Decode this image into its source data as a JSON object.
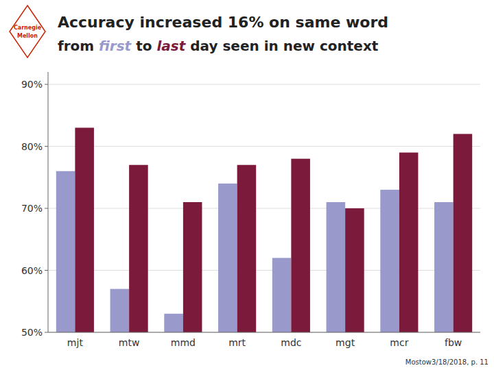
{
  "chart_data": {
    "type": "bar",
    "title": "Accuracy increased 16% on same word",
    "subtitle": "from first to last day seen in new context",
    "annotations": [
      "Carnegie",
      "Mellon",
      "Mostow3/18/2018, p. 11"
    ],
    "categories": [
      "mjt",
      "mtw",
      "mmd",
      "mrt",
      "mdc",
      "mgt",
      "mcr",
      "fbw"
    ],
    "series": [
      {
        "name": "first",
        "color": "#9999cc",
        "values": [
          76,
          57,
          53,
          74,
          62,
          71,
          73,
          71
        ]
      },
      {
        "name": "last",
        "color": "#7b1a3a",
        "values": [
          83,
          77,
          71,
          77,
          78,
          70,
          79,
          82
        ]
      }
    ],
    "ylim": [
      50,
      92
    ],
    "yticks": [
      {
        "value": 50,
        "label": "50%"
      },
      {
        "value": 60,
        "label": "60%"
      },
      {
        "value": 70,
        "label": "70%"
      },
      {
        "value": 80,
        "label": "80%"
      },
      {
        "value": 90,
        "label": "90%"
      }
    ],
    "grid": true
  }
}
